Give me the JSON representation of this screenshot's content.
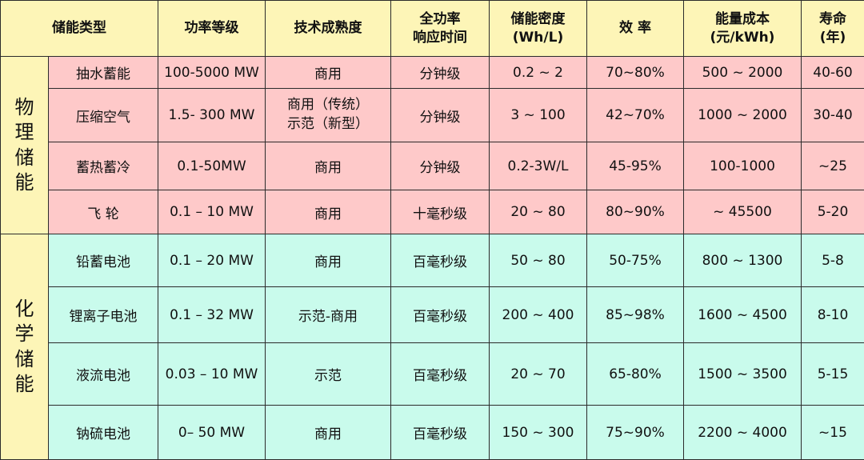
{
  "header": {
    "type": "储能类型",
    "power": "功率等级",
    "maturity": "技术成熟度",
    "response_1": "全功率",
    "response_2": "响应时间",
    "density_1": "储能密度",
    "density_2": "(Wh/L)",
    "efficiency": "效 率",
    "cost_1": "能量成本",
    "cost_2": "(元/kWh)",
    "life_1": "寿命",
    "life_2": "(年)"
  },
  "groups": {
    "physical": [
      "物",
      "理",
      "储",
      "能"
    ],
    "chemical": [
      "化",
      "学",
      "储",
      "能"
    ]
  },
  "physical_rows": [
    {
      "name": "抽水蓄能",
      "power": "100-5000 MW",
      "maturity": [
        "商用"
      ],
      "response": "分钟级",
      "density": "0.2 ~ 2",
      "efficiency": "70~80%",
      "cost": "500 ~ 2000",
      "life": "40-60"
    },
    {
      "name": "压缩空气",
      "power": "1.5- 300 MW",
      "maturity": [
        "商用（传统）",
        "示范（新型）"
      ],
      "response": "分钟级",
      "density": "3 ~ 100",
      "efficiency": "42~70%",
      "cost": "1000 ~ 2000",
      "life": "30-40"
    },
    {
      "name": "蓄热蓄冷",
      "power": "0.1-50MW",
      "maturity": [
        "商用"
      ],
      "response": "分钟级",
      "density": "0.2-3W/L",
      "efficiency": "45-95%",
      "cost": "100-1000",
      "life": "~25"
    },
    {
      "name": "飞 轮",
      "power": "0.1 – 10 MW",
      "maturity": [
        "商用"
      ],
      "response": "十毫秒级",
      "density": "20 ~ 80",
      "efficiency": "80~90%",
      "cost": "~ 45500",
      "life": "5-20"
    }
  ],
  "chemical_rows": [
    {
      "name": "铅蓄电池",
      "power": "0.1 – 20 MW",
      "maturity": [
        "商用"
      ],
      "response": "百毫秒级",
      "density": "50 ~ 80",
      "efficiency": "50-75%",
      "cost": "800 ~ 1300",
      "life": "5-8"
    },
    {
      "name": "锂离子电池",
      "power": "0.1 – 32 MW",
      "maturity": [
        "示范-商用"
      ],
      "response": "百毫秒级",
      "density": "200 ~ 400",
      "efficiency": "85~98%",
      "cost": "1600 ~ 4500",
      "life": "8-10"
    },
    {
      "name": "液流电池",
      "power": "0.03 – 10 MW",
      "maturity": [
        "示范"
      ],
      "response": "百毫秒级",
      "density": "20 ~ 70",
      "efficiency": "65-80%",
      "cost": "1500 ~ 3500",
      "life": "5-15"
    },
    {
      "name": "钠硫电池",
      "power": "0– 50 MW",
      "maturity": [
        "商用"
      ],
      "response": "百毫秒级",
      "density": "150 ~ 300",
      "efficiency": "75~90%",
      "cost": "2200 ~ 4000",
      "life": "~15"
    }
  ],
  "colors": {
    "header_bg": "#fdf5b7",
    "physical_bg": "#fec9c9",
    "chemical_bg": "#c9fbec",
    "border": "#2b2b2b"
  }
}
